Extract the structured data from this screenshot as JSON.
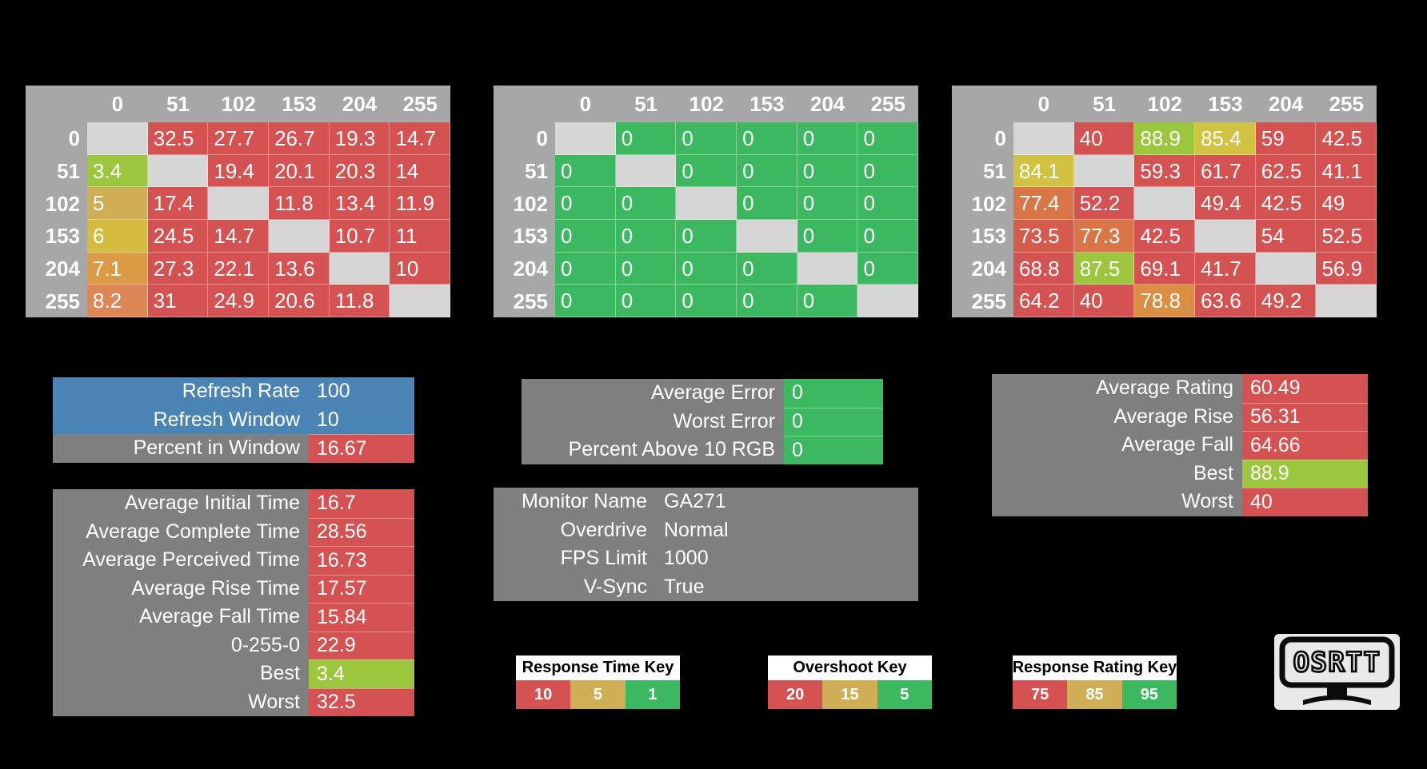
{
  "palette": {
    "bg": "#000000",
    "header_gray": "#A7A7A7",
    "diag": "#D5D5D5",
    "panel_gray": "#7F7F7F",
    "blue": "#4A84B5",
    "red": "#D45251",
    "green": "#3CB960",
    "lime": "#9CC63D",
    "yellow": "#D2C242",
    "tan": "#CFAE55",
    "gold": "#D5BC40",
    "orange": "#DB9A43",
    "orange_salmon": "#DE8756",
    "orange_deep": "#D97647",
    "orange_mid": "#D98E44",
    "red_orange": "#D55B4C",
    "white_text": "#FFFFFF",
    "key_header_bg": "#FFFFFF",
    "key_text": "#000000",
    "logo_card": "#E9E9E9",
    "logo_ink": "#0B0B0B"
  },
  "chart_data": [
    {
      "type": "heatmap",
      "name": "response-time-matrix",
      "x_labels": [
        "0",
        "51",
        "102",
        "153",
        "204",
        "255"
      ],
      "y_labels": [
        "0",
        "51",
        "102",
        "153",
        "204",
        "255"
      ],
      "values": [
        [
          null,
          32.5,
          27.7,
          26.7,
          19.3,
          14.7
        ],
        [
          3.4,
          null,
          19.4,
          20.1,
          20.3,
          14
        ],
        [
          5,
          17.4,
          null,
          11.8,
          13.4,
          11.9
        ],
        [
          6,
          24.5,
          14.7,
          null,
          10.7,
          11
        ],
        [
          7.1,
          27.3,
          22.1,
          13.6,
          null,
          10
        ],
        [
          8.2,
          31,
          24.9,
          20.6,
          11.8,
          null
        ]
      ],
      "colors": [
        [
          "diag",
          "red",
          "red",
          "red",
          "red",
          "red"
        ],
        [
          "lime",
          "diag",
          "red",
          "red",
          "red",
          "red"
        ],
        [
          "tan",
          "red",
          "diag",
          "red",
          "red",
          "red"
        ],
        [
          "gold",
          "red",
          "red",
          "diag",
          "red",
          "red"
        ],
        [
          "orange",
          "red",
          "red",
          "red",
          "diag",
          "red"
        ],
        [
          "orange_salmon",
          "red",
          "red",
          "red",
          "red",
          "diag"
        ]
      ]
    },
    {
      "type": "heatmap",
      "name": "overshoot-matrix",
      "x_labels": [
        "0",
        "51",
        "102",
        "153",
        "204",
        "255"
      ],
      "y_labels": [
        "0",
        "51",
        "102",
        "153",
        "204",
        "255"
      ],
      "values": [
        [
          null,
          0,
          0,
          0,
          0,
          0
        ],
        [
          0,
          null,
          0,
          0,
          0,
          0
        ],
        [
          0,
          0,
          null,
          0,
          0,
          0
        ],
        [
          0,
          0,
          0,
          null,
          0,
          0
        ],
        [
          0,
          0,
          0,
          0,
          null,
          0
        ],
        [
          0,
          0,
          0,
          0,
          0,
          null
        ]
      ],
      "colors": [
        [
          "diag",
          "green",
          "green",
          "green",
          "green",
          "green"
        ],
        [
          "green",
          "diag",
          "green",
          "green",
          "green",
          "green"
        ],
        [
          "green",
          "green",
          "diag",
          "green",
          "green",
          "green"
        ],
        [
          "green",
          "green",
          "green",
          "diag",
          "green",
          "green"
        ],
        [
          "green",
          "green",
          "green",
          "green",
          "diag",
          "green"
        ],
        [
          "green",
          "green",
          "green",
          "green",
          "green",
          "diag"
        ]
      ]
    },
    {
      "type": "heatmap",
      "name": "response-rating-matrix",
      "x_labels": [
        "0",
        "51",
        "102",
        "153",
        "204",
        "255"
      ],
      "y_labels": [
        "0",
        "51",
        "102",
        "153",
        "204",
        "255"
      ],
      "values": [
        [
          null,
          40,
          88.9,
          85.4,
          59,
          42.5
        ],
        [
          84.1,
          null,
          59.3,
          61.7,
          62.5,
          41.1
        ],
        [
          77.4,
          52.2,
          null,
          49.4,
          42.5,
          49
        ],
        [
          73.5,
          77.3,
          42.5,
          null,
          54,
          52.5
        ],
        [
          68.8,
          87.5,
          69.1,
          41.7,
          null,
          56.9
        ],
        [
          64.2,
          40,
          78.8,
          63.6,
          49.2,
          null
        ]
      ],
      "colors": [
        [
          "diag",
          "red",
          "lime",
          "yellow",
          "red",
          "red"
        ],
        [
          "yellow",
          "diag",
          "red",
          "red",
          "red",
          "red"
        ],
        [
          "orange_deep",
          "red",
          "diag",
          "red",
          "red",
          "red"
        ],
        [
          "red_orange",
          "orange_deep",
          "red",
          "diag",
          "red",
          "red"
        ],
        [
          "red",
          "lime",
          "red",
          "red",
          "diag",
          "red"
        ],
        [
          "red",
          "red",
          "orange_mid",
          "red",
          "red",
          "diag"
        ]
      ]
    }
  ],
  "panels": [
    {
      "id": "refresh",
      "rows": [
        {
          "label": "Refresh Rate",
          "value": "100",
          "row_bg": "blue"
        },
        {
          "label": "Refresh Window",
          "value": "10",
          "row_bg": "blue"
        },
        {
          "label": "Percent in Window",
          "value": "16.67",
          "row_bg": "panel_gray",
          "value_bg": "red"
        }
      ]
    },
    {
      "id": "error",
      "rows": [
        {
          "label": "Average Error",
          "value": "0",
          "row_bg": "panel_gray",
          "value_bg": "green"
        },
        {
          "label": "Worst Error",
          "value": "0",
          "row_bg": "panel_gray",
          "value_bg": "green"
        },
        {
          "label": "Percent Above 10 RGB",
          "value": "0",
          "row_bg": "panel_gray",
          "value_bg": "green"
        }
      ]
    },
    {
      "id": "rating",
      "rows": [
        {
          "label": "Average Rating",
          "value": "60.49",
          "row_bg": "panel_gray",
          "value_bg": "red"
        },
        {
          "label": "Average Rise",
          "value": "56.31",
          "row_bg": "panel_gray",
          "value_bg": "red"
        },
        {
          "label": "Average Fall",
          "value": "64.66",
          "row_bg": "panel_gray",
          "value_bg": "red"
        },
        {
          "label": "Best",
          "value": "88.9",
          "row_bg": "panel_gray",
          "value_bg": "lime"
        },
        {
          "label": "Worst",
          "value": "40",
          "row_bg": "panel_gray",
          "value_bg": "red"
        }
      ]
    },
    {
      "id": "times",
      "rows": [
        {
          "label": "Average Initial Time",
          "value": "16.7",
          "row_bg": "panel_gray",
          "value_bg": "red"
        },
        {
          "label": "Average Complete Time",
          "value": "28.56",
          "row_bg": "panel_gray",
          "value_bg": "red"
        },
        {
          "label": "Average Perceived Time",
          "value": "16.73",
          "row_bg": "panel_gray",
          "value_bg": "red"
        },
        {
          "label": "Average Rise Time",
          "value": "17.57",
          "row_bg": "panel_gray",
          "value_bg": "red"
        },
        {
          "label": "Average Fall Time",
          "value": "15.84",
          "row_bg": "panel_gray",
          "value_bg": "red"
        },
        {
          "label": "0-255-0",
          "value": "22.9",
          "row_bg": "panel_gray",
          "value_bg": "red"
        },
        {
          "label": "Best",
          "value": "3.4",
          "row_bg": "panel_gray",
          "value_bg": "lime"
        },
        {
          "label": "Worst",
          "value": "32.5",
          "row_bg": "panel_gray",
          "value_bg": "red"
        }
      ]
    },
    {
      "id": "monitor",
      "rows": [
        {
          "label": "Monitor Name",
          "value": "GA271",
          "row_bg": "panel_gray"
        },
        {
          "label": "Overdrive",
          "value": "Normal",
          "row_bg": "panel_gray"
        },
        {
          "label": "FPS Limit",
          "value": "1000",
          "row_bg": "panel_gray"
        },
        {
          "label": "V-Sync",
          "value": "True",
          "row_bg": "panel_gray"
        }
      ]
    }
  ],
  "keys": [
    {
      "title": "Response Time Key",
      "cells": [
        {
          "v": "10",
          "c": "red"
        },
        {
          "v": "5",
          "c": "tan"
        },
        {
          "v": "1",
          "c": "green"
        }
      ]
    },
    {
      "title": "Overshoot Key",
      "cells": [
        {
          "v": "20",
          "c": "red"
        },
        {
          "v": "15",
          "c": "tan"
        },
        {
          "v": "5",
          "c": "green"
        }
      ]
    },
    {
      "title": "Response Rating Key",
      "cells": [
        {
          "v": "75",
          "c": "red"
        },
        {
          "v": "85",
          "c": "tan"
        },
        {
          "v": "95",
          "c": "green"
        }
      ]
    }
  ],
  "logo": {
    "text": "OSRTT"
  }
}
